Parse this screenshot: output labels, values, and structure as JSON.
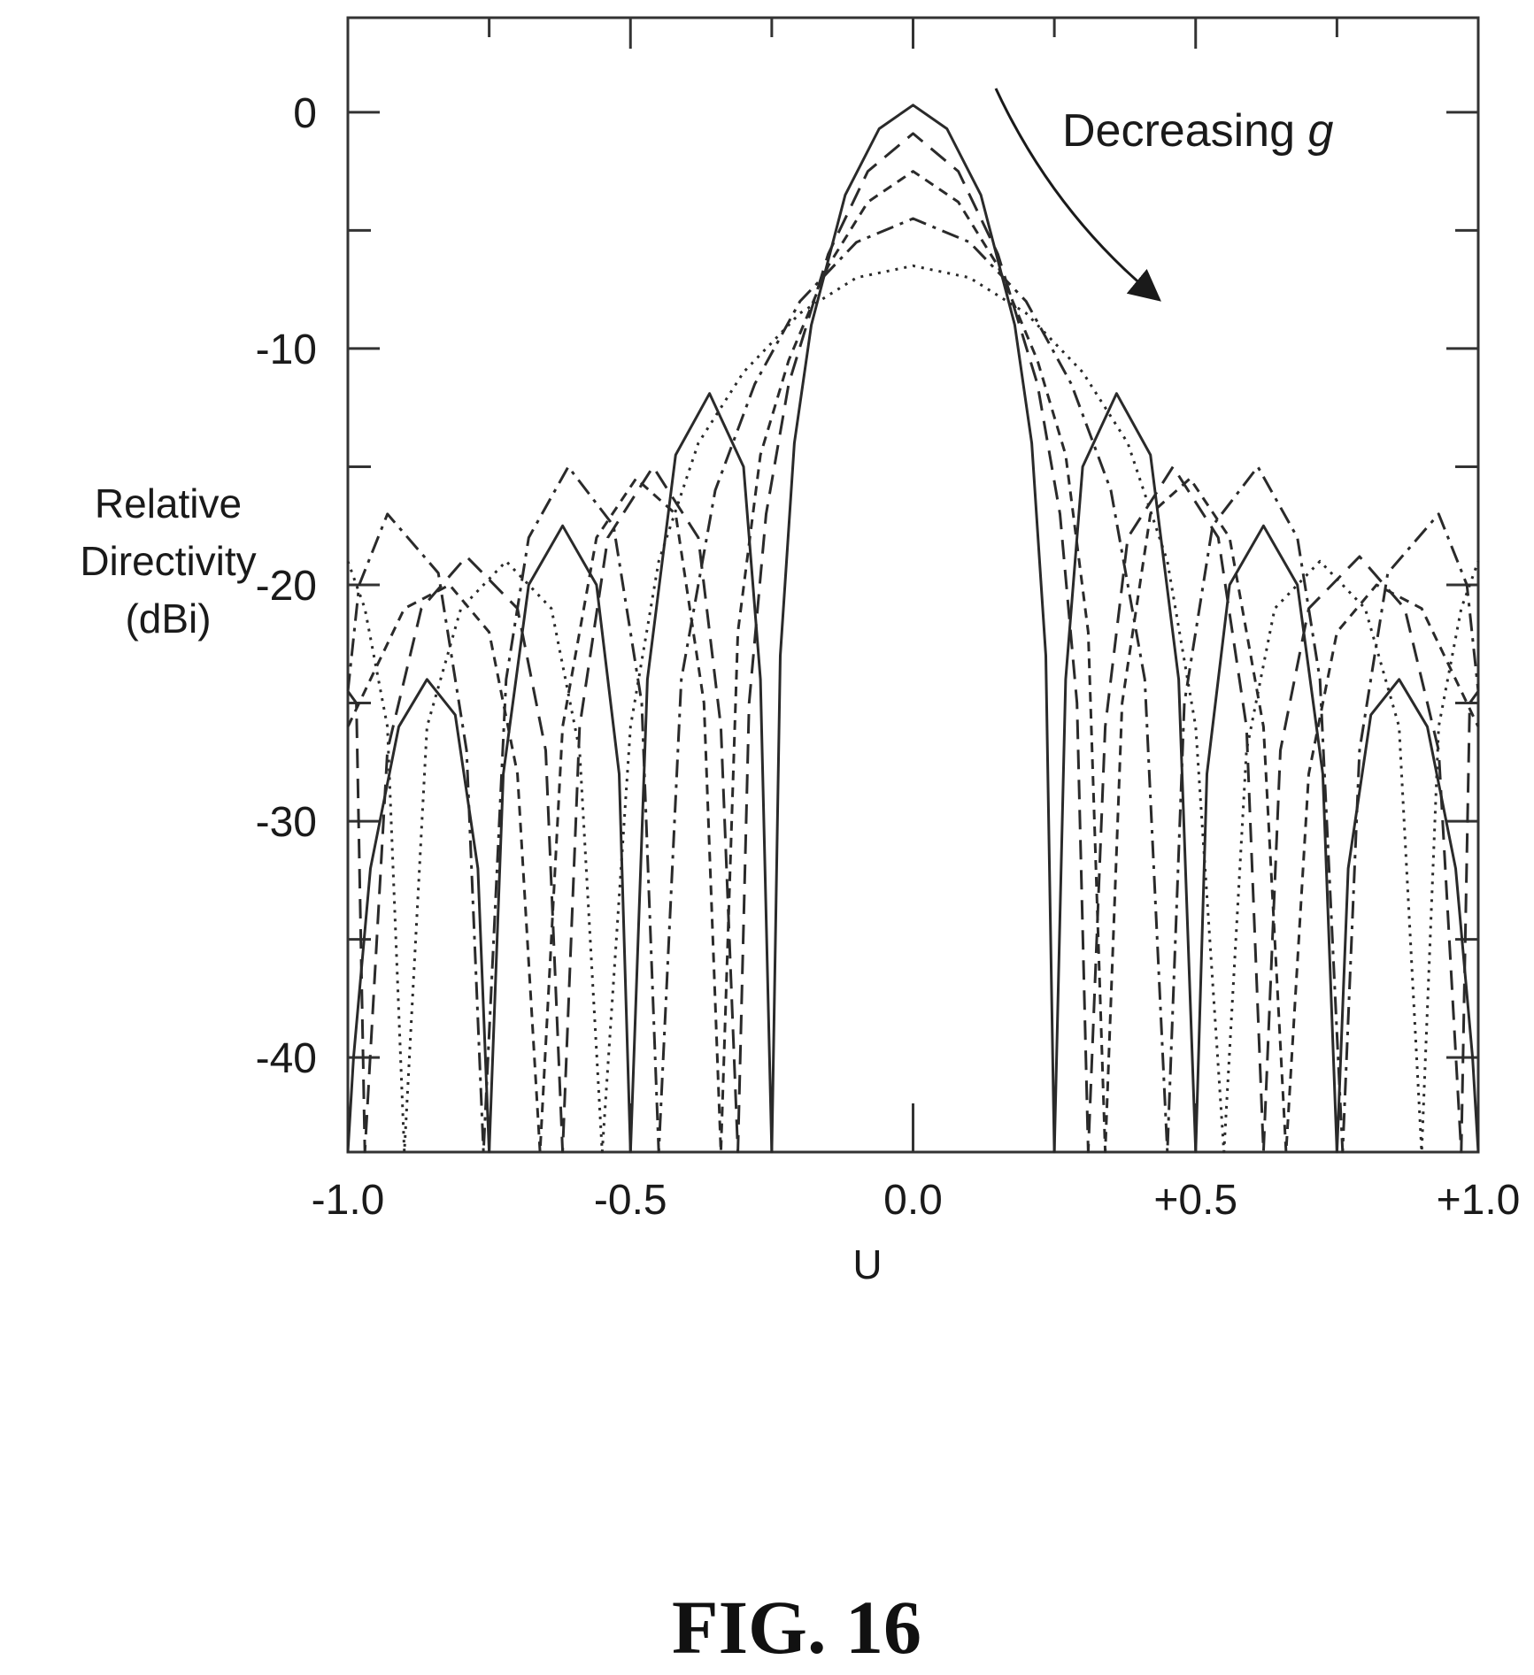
{
  "figure_caption": "FIG. 16",
  "chart_data": {
    "type": "line",
    "xlabel": "U",
    "ylabel": [
      "Relative",
      "Directivity",
      "(dBi)"
    ],
    "xlim": [
      -1.0,
      1.0
    ],
    "ylim": [
      -44,
      4
    ],
    "xticks": [
      -1.0,
      -0.5,
      0.0,
      0.5,
      1.0
    ],
    "xtick_labels": [
      "-1.0",
      "-0.5",
      "0.0",
      "+0.5",
      "+1.0"
    ],
    "yticks": [
      0,
      -10,
      -20,
      -30,
      -40
    ],
    "ytick_labels": [
      "0",
      "-10",
      "-20",
      "-30",
      "-40"
    ],
    "minor_xticks": [
      -0.75,
      -0.25,
      0.25,
      0.75
    ],
    "minor_yticks": [
      -5,
      -15,
      -25,
      -35
    ],
    "grid": false,
    "legend": "none",
    "annotation": {
      "text": "Decreasing ",
      "italic_symbol": "g",
      "arrow": true
    },
    "series": [
      {
        "style": "solid",
        "points": [
          [
            0.0,
            0.3
          ],
          [
            0.06,
            -0.7
          ],
          [
            0.12,
            -3.5
          ],
          [
            0.18,
            -9
          ],
          [
            0.21,
            -14
          ],
          [
            0.235,
            -23
          ],
          [
            0.25,
            -44
          ],
          [
            0.27,
            -24
          ],
          [
            0.3,
            -15
          ],
          [
            0.36,
            -11.9
          ],
          [
            0.42,
            -14.5
          ],
          [
            0.47,
            -24
          ],
          [
            0.5,
            -44
          ],
          [
            0.52,
            -28
          ],
          [
            0.56,
            -20
          ],
          [
            0.62,
            -17.5
          ],
          [
            0.68,
            -20
          ],
          [
            0.725,
            -28
          ],
          [
            0.75,
            -44
          ],
          [
            0.77,
            -32
          ],
          [
            0.81,
            -25.5
          ],
          [
            0.86,
            -24
          ],
          [
            0.91,
            -26
          ],
          [
            0.96,
            -32
          ],
          [
            0.99,
            -40
          ],
          [
            1.0,
            -44
          ]
        ]
      },
      {
        "style": "dashed-long",
        "points": [
          [
            0.0,
            -0.9
          ],
          [
            0.08,
            -2.5
          ],
          [
            0.15,
            -6
          ],
          [
            0.22,
            -11.5
          ],
          [
            0.26,
            -17
          ],
          [
            0.29,
            -25
          ],
          [
            0.31,
            -44
          ],
          [
            0.34,
            -26
          ],
          [
            0.38,
            -18
          ],
          [
            0.46,
            -15
          ],
          [
            0.54,
            -18
          ],
          [
            0.59,
            -26
          ],
          [
            0.62,
            -44
          ],
          [
            0.65,
            -27
          ],
          [
            0.7,
            -21
          ],
          [
            0.79,
            -18.8
          ],
          [
            0.87,
            -21
          ],
          [
            0.93,
            -27
          ],
          [
            0.97,
            -44
          ],
          [
            0.985,
            -25
          ],
          [
            1.0,
            -24.5
          ]
        ]
      },
      {
        "style": "dashed-short",
        "points": [
          [
            0.0,
            -2.5
          ],
          [
            0.08,
            -3.8
          ],
          [
            0.15,
            -6.5
          ],
          [
            0.22,
            -10.5
          ],
          [
            0.27,
            -14.5
          ],
          [
            0.31,
            -22
          ],
          [
            0.34,
            -44
          ],
          [
            0.37,
            -25
          ],
          [
            0.42,
            -17
          ],
          [
            0.49,
            -15.5
          ],
          [
            0.56,
            -18
          ],
          [
            0.62,
            -26
          ],
          [
            0.66,
            -44
          ],
          [
            0.7,
            -28
          ],
          [
            0.75,
            -22
          ],
          [
            0.82,
            -20
          ],
          [
            0.9,
            -21
          ],
          [
            0.96,
            -24
          ],
          [
            1.0,
            -26
          ]
        ]
      },
      {
        "style": "dash-dot",
        "points": [
          [
            0.0,
            -4.5
          ],
          [
            0.1,
            -5.5
          ],
          [
            0.2,
            -8
          ],
          [
            0.28,
            -11.5
          ],
          [
            0.35,
            -16
          ],
          [
            0.41,
            -24
          ],
          [
            0.45,
            -44
          ],
          [
            0.48,
            -25
          ],
          [
            0.53,
            -17.5
          ],
          [
            0.61,
            -15
          ],
          [
            0.68,
            -18
          ],
          [
            0.72,
            -24
          ],
          [
            0.76,
            -44
          ],
          [
            0.79,
            -27
          ],
          [
            0.84,
            -19.5
          ],
          [
            0.93,
            -17
          ],
          [
            0.98,
            -20
          ],
          [
            1.0,
            -24.5
          ]
        ]
      },
      {
        "style": "dotted",
        "points": [
          [
            0.0,
            -6.5
          ],
          [
            0.1,
            -7
          ],
          [
            0.2,
            -8.5
          ],
          [
            0.3,
            -11
          ],
          [
            0.38,
            -14
          ],
          [
            0.45,
            -19
          ],
          [
            0.5,
            -26
          ],
          [
            0.55,
            -44
          ],
          [
            0.59,
            -27
          ],
          [
            0.64,
            -21
          ],
          [
            0.72,
            -19
          ],
          [
            0.8,
            -21
          ],
          [
            0.86,
            -26
          ],
          [
            0.9,
            -44
          ],
          [
            0.93,
            -26
          ],
          [
            0.97,
            -21
          ],
          [
            1.0,
            -19
          ]
        ]
      }
    ]
  }
}
